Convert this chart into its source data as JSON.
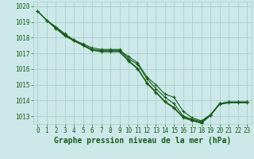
{
  "background_color": "#cce8e8",
  "grid_color": "#aacece",
  "line_color": "#1a5c1a",
  "marker_color": "#1a5c1a",
  "xlabel": "Graphe pression niveau de la mer (hPa)",
  "xlabel_fontsize": 7,
  "xlim": [
    -0.5,
    23.5
  ],
  "ylim": [
    1012.5,
    1020.3
  ],
  "yticks": [
    1013,
    1014,
    1015,
    1016,
    1017,
    1018,
    1019,
    1020
  ],
  "xticks": [
    0,
    1,
    2,
    3,
    4,
    5,
    6,
    7,
    8,
    9,
    10,
    11,
    12,
    13,
    14,
    15,
    16,
    17,
    18,
    19,
    20,
    21,
    22,
    23
  ],
  "tick_fontsize": 5.5,
  "series": [
    {
      "x": [
        0,
        1,
        2,
        3,
        4,
        5,
        6,
        7,
        8,
        9,
        10,
        11,
        12,
        13,
        14,
        15,
        16,
        17,
        18,
        19,
        20,
        21,
        22,
        23
      ],
      "y": [
        1019.7,
        1019.1,
        1018.6,
        1018.2,
        1017.8,
        1017.5,
        1017.2,
        1017.2,
        1017.2,
        1017.2,
        1016.8,
        1016.4,
        1015.5,
        1015.0,
        1014.4,
        1014.2,
        1013.3,
        1012.9,
        1012.7,
        1013.1,
        1013.8,
        1013.9,
        1013.9,
        1013.9
      ]
    },
    {
      "x": [
        0,
        1,
        2,
        3,
        4,
        5,
        6,
        7,
        8,
        9,
        10,
        11,
        12,
        13,
        14,
        15,
        16,
        17,
        18,
        19,
        20,
        21,
        22,
        23
      ],
      "y": [
        1019.7,
        1019.1,
        1018.7,
        1018.25,
        1017.85,
        1017.6,
        1017.35,
        1017.25,
        1017.25,
        1017.25,
        1016.65,
        1016.3,
        1015.4,
        1014.75,
        1014.2,
        1013.8,
        1013.0,
        1012.8,
        1012.65,
        1013.05,
        1013.8,
        1013.9,
        1013.9,
        1013.9
      ]
    },
    {
      "x": [
        0,
        1,
        2,
        3,
        4,
        5,
        6,
        7,
        8,
        9,
        10,
        11,
        12,
        13,
        14,
        15,
        16,
        17,
        18,
        19,
        20,
        21,
        22,
        23
      ],
      "y": [
        1019.7,
        1019.1,
        1018.6,
        1018.1,
        1017.8,
        1017.5,
        1017.2,
        1017.1,
        1017.1,
        1017.1,
        1016.5,
        1016.0,
        1015.1,
        1014.5,
        1013.9,
        1013.5,
        1012.9,
        1012.7,
        1012.55,
        1013.05,
        1013.75,
        1013.85,
        1013.85,
        1013.85
      ]
    },
    {
      "x": [
        1,
        2,
        3,
        4,
        5,
        6,
        7,
        8,
        9,
        10,
        11,
        12,
        13,
        14,
        15,
        16,
        17,
        18,
        19,
        20,
        21,
        22,
        23
      ],
      "y": [
        1019.1,
        1018.65,
        1018.15,
        1017.85,
        1017.55,
        1017.25,
        1017.15,
        1017.15,
        1017.15,
        1016.55,
        1016.05,
        1015.15,
        1014.55,
        1013.95,
        1013.55,
        1012.95,
        1012.75,
        1012.6,
        1013.05,
        1013.8,
        1013.9,
        1013.9,
        1013.9
      ]
    }
  ]
}
